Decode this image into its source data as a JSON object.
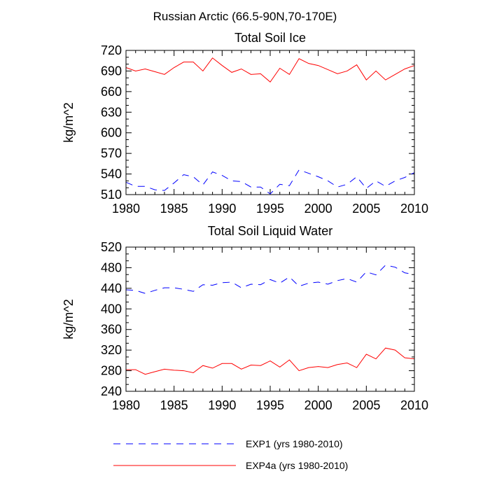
{
  "title": "Russian Arctic (66.5-90N,70-170E)",
  "legend": [
    {
      "label": "EXP1 (yrs 1980-2010)",
      "color": "#0000ff",
      "dash": "dashed"
    },
    {
      "label": "EXP4a (yrs 1980-2010)",
      "color": "#ff0000",
      "dash": "solid"
    }
  ],
  "chart_data": [
    {
      "type": "line",
      "title": "Total Soil Ice",
      "xlabel": "",
      "ylabel": "kg/m^2",
      "xlim": [
        1980,
        2010
      ],
      "ylim": [
        510,
        720
      ],
      "xticks": [
        1980,
        1985,
        1990,
        1995,
        2000,
        2005,
        2010
      ],
      "yticks": [
        510,
        540,
        570,
        600,
        630,
        660,
        690,
        720
      ],
      "x": [
        1980,
        1981,
        1982,
        1983,
        1984,
        1985,
        1986,
        1987,
        1988,
        1989,
        1990,
        1991,
        1992,
        1993,
        1994,
        1995,
        1996,
        1997,
        1998,
        1999,
        2000,
        2001,
        2002,
        2003,
        2004,
        2005,
        2006,
        2007,
        2008,
        2009,
        2010
      ],
      "series": [
        {
          "name": "EXP1 (yrs 1980-2010)",
          "color": "#0000ff",
          "dash": "dashed",
          "values": [
            528,
            522,
            522,
            517,
            516,
            527,
            539,
            536,
            524,
            543,
            538,
            530,
            529,
            521,
            521,
            511,
            525,
            523,
            546,
            541,
            536,
            530,
            521,
            525,
            536,
            519,
            530,
            522,
            530,
            535,
            542
          ]
        },
        {
          "name": "EXP4a (yrs 1980-2010)",
          "color": "#ff0000",
          "dash": "solid",
          "values": [
            695,
            690,
            693,
            689,
            685,
            695,
            703,
            703,
            690,
            709,
            698,
            688,
            693,
            685,
            686,
            674,
            694,
            685,
            708,
            701,
            698,
            692,
            686,
            690,
            699,
            677,
            690,
            677,
            685,
            693,
            698
          ]
        }
      ]
    },
    {
      "type": "line",
      "title": "Total Soil Liquid Water",
      "xlabel": "",
      "ylabel": "kg/m^2",
      "xlim": [
        1980,
        2010
      ],
      "ylim": [
        240,
        520
      ],
      "xticks": [
        1980,
        1985,
        1990,
        1995,
        2000,
        2005,
        2010
      ],
      "yticks": [
        240,
        280,
        320,
        360,
        400,
        440,
        480,
        520
      ],
      "x": [
        1980,
        1981,
        1982,
        1983,
        1984,
        1985,
        1986,
        1987,
        1988,
        1989,
        1990,
        1991,
        1992,
        1993,
        1994,
        1995,
        1996,
        1997,
        1998,
        1999,
        2000,
        2001,
        2002,
        2003,
        2004,
        2005,
        2006,
        2007,
        2008,
        2009,
        2010
      ],
      "series": [
        {
          "name": "EXP1 (yrs 1980-2010)",
          "color": "#0000ff",
          "dash": "dashed",
          "values": [
            437,
            436,
            430,
            436,
            441,
            441,
            438,
            434,
            447,
            446,
            451,
            452,
            441,
            448,
            447,
            457,
            450,
            462,
            444,
            450,
            452,
            448,
            455,
            459,
            452,
            472,
            466,
            485,
            481,
            470,
            467
          ]
        },
        {
          "name": "EXP4a (yrs 1980-2010)",
          "color": "#ff0000",
          "dash": "solid",
          "values": [
            282,
            282,
            273,
            278,
            283,
            281,
            280,
            276,
            290,
            285,
            294,
            294,
            283,
            291,
            290,
            299,
            287,
            301,
            280,
            286,
            288,
            286,
            292,
            295,
            286,
            312,
            303,
            324,
            320,
            305,
            303
          ]
        }
      ]
    }
  ]
}
